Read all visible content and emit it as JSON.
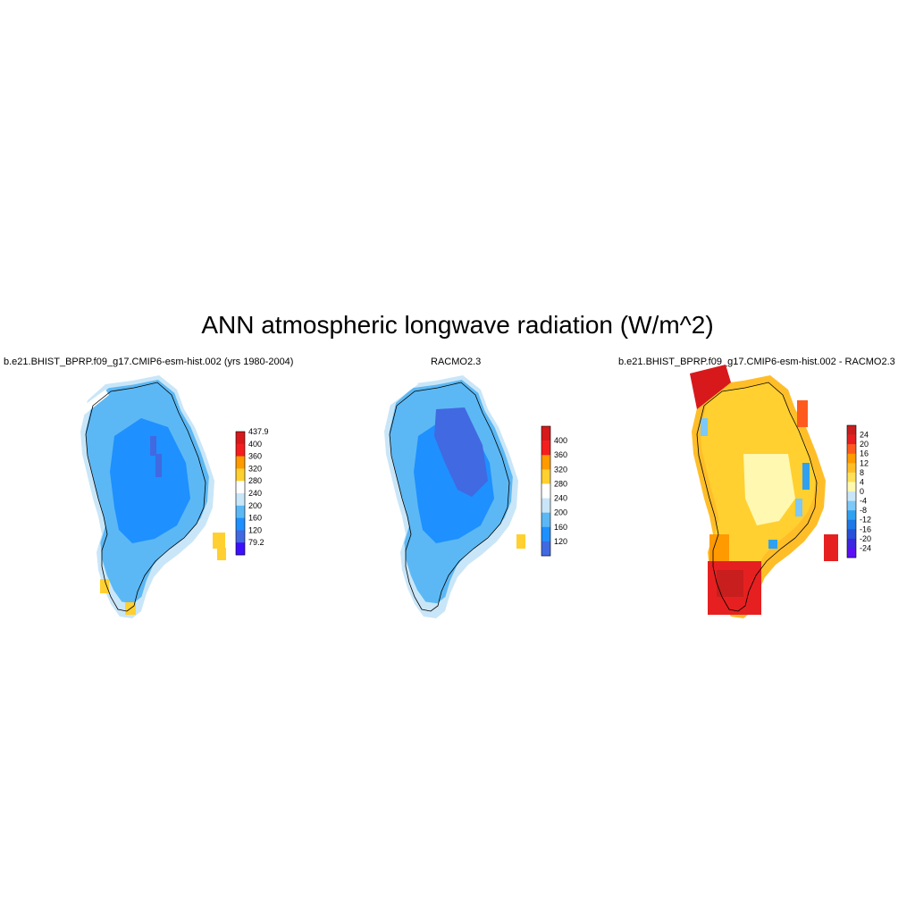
{
  "figure": {
    "title": "ANN atmospheric longwave radiation (W/m^2)"
  },
  "panels": [
    {
      "id": "model",
      "title": "b.e21.BHIST_BPRP.f09_g17.CMIP6-esm-hist.002 (yrs 1980-2004)",
      "colorbar": {
        "labels": [
          "437.9",
          "400",
          "360",
          "320",
          "280",
          "240",
          "200",
          "160",
          "120",
          "79.2"
        ],
        "colors": [
          "#d7191c",
          "#f51e1e",
          "#ff9a00",
          "#ffd030",
          "#ffffff",
          "#c9e6f8",
          "#5cb8f4",
          "#1e90ff",
          "#4169e1",
          "#3c10ff"
        ]
      }
    },
    {
      "id": "obs",
      "title": "RACMO2.3",
      "colorbar": {
        "labels": [
          "400",
          "360",
          "320",
          "280",
          "240",
          "200",
          "160",
          "120"
        ],
        "colors": [
          "#d7191c",
          "#f51e1e",
          "#ff9a00",
          "#ffd030",
          "#ffffff",
          "#c9e6f8",
          "#5cb8f4",
          "#1e90ff",
          "#4169e1"
        ]
      }
    },
    {
      "id": "diff",
      "title": "b.e21.BHIST_BPRP.f09_g17.CMIP6-esm-hist.002 - RACMO2.3",
      "colorbar": {
        "labels": [
          "24",
          "20",
          "16",
          "12",
          "8",
          "4",
          "0",
          "-4",
          "-8",
          "-12",
          "-16",
          "-20",
          "-24"
        ],
        "colors": [
          "#c81e1e",
          "#e62020",
          "#ff5a1e",
          "#ff9a00",
          "#ffbe28",
          "#ffe05a",
          "#fff8b0",
          "#c9e6f8",
          "#7cc8f8",
          "#30a0f0",
          "#1e78e6",
          "#2850d8",
          "#3c28e0",
          "#5a10f5"
        ]
      }
    }
  ]
}
